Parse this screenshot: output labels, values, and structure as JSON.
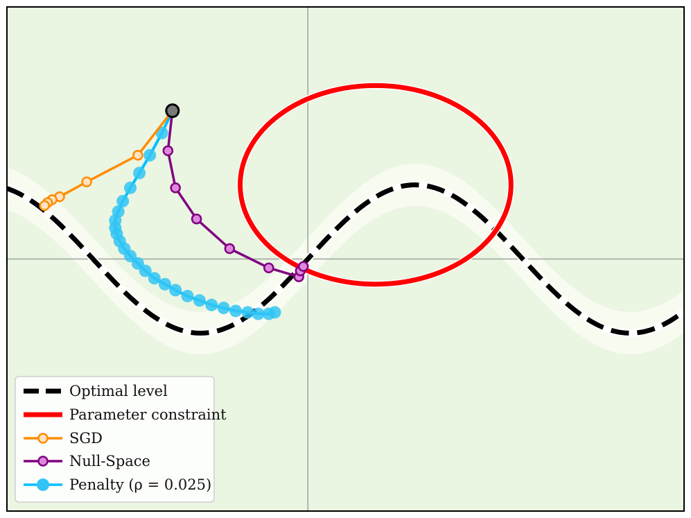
{
  "chart_data": {
    "type": "line",
    "title": "",
    "xlabel": "",
    "ylabel": "",
    "xlim": [
      -2.0,
      2.5
    ],
    "ylim": [
      -1.7,
      1.7
    ],
    "grid": false,
    "axis_lines": {
      "x": 0,
      "y": 0,
      "color": "#9aa39e"
    },
    "legend": {
      "position": "lower-left",
      "entries": [
        {
          "label": "Optimal level",
          "style": "dashed",
          "color": "#000000"
        },
        {
          "label": "Parameter constraint",
          "style": "solid",
          "color": "#ff0000"
        },
        {
          "label": "SGD",
          "style": "line-marker",
          "color": "#ff8c00"
        },
        {
          "label": "Null-Space",
          "style": "line-marker",
          "color": "#800080"
        },
        {
          "label": "Penalty (ρ = 0.025)",
          "style": "line-marker",
          "color": "#00bfff"
        }
      ]
    },
    "background": {
      "type": "contour",
      "function": "(y - 0.5*sin(2.2*x))^2",
      "colors": [
        "#f7fbf0",
        "#eaf5e2",
        "#d9efd6",
        "#c4e6cf",
        "#a8dcc9",
        "#8ccbd2",
        "#74b5d6",
        "#5f9fcf",
        "#4a88c2"
      ],
      "levels": [
        0.02,
        0.08,
        0.18,
        0.3,
        0.45,
        0.65,
        0.9,
        1.2
      ]
    },
    "optimal_level": {
      "name": "Optimal level",
      "color": "#000000",
      "curve": "y = 0.5*sin(2.2*x)",
      "x_range": [
        -2.0,
        2.5
      ]
    },
    "constraint": {
      "name": "Parameter constraint",
      "color": "#ff0000",
      "shape": "ellipse",
      "center": [
        0.45,
        0.5
      ],
      "radius_x": 0.9,
      "radius_y": 0.67
    },
    "start_point": {
      "x": -0.9,
      "y": 1.0
    },
    "series": [
      {
        "name": "SGD",
        "color": "#ff8c00",
        "marker_fill": "#ffe3c2",
        "points": [
          [
            -0.9,
            1.0
          ],
          [
            -1.13,
            0.7
          ],
          [
            -1.47,
            0.52
          ],
          [
            -1.65,
            0.42
          ],
          [
            -1.7,
            0.4
          ],
          [
            -1.73,
            0.38
          ],
          [
            -1.75,
            0.36
          ]
        ]
      },
      {
        "name": "Null-Space",
        "color": "#800080",
        "marker_fill": "#dd88dd",
        "points": [
          [
            -0.9,
            1.0
          ],
          [
            -0.93,
            0.73
          ],
          [
            -0.88,
            0.48
          ],
          [
            -0.74,
            0.27
          ],
          [
            -0.52,
            0.07
          ],
          [
            -0.26,
            -0.06
          ],
          [
            -0.06,
            -0.12
          ],
          [
            -0.05,
            -0.08
          ],
          [
            -0.03,
            -0.05
          ]
        ]
      },
      {
        "name": "Penalty (ρ = 0.025)",
        "color": "#00bfff",
        "marker_fill": "#33c4f4",
        "points": [
          [
            -0.9,
            1.0
          ],
          [
            -0.97,
            0.85
          ],
          [
            -1.05,
            0.7
          ],
          [
            -1.12,
            0.58
          ],
          [
            -1.18,
            0.48
          ],
          [
            -1.23,
            0.39
          ],
          [
            -1.26,
            0.32
          ],
          [
            -1.28,
            0.26
          ],
          [
            -1.28,
            0.21
          ],
          [
            -1.27,
            0.17
          ],
          [
            -1.25,
            0.12
          ],
          [
            -1.22,
            0.07
          ],
          [
            -1.18,
            0.02
          ],
          [
            -1.13,
            -0.03
          ],
          [
            -1.08,
            -0.08
          ],
          [
            -1.02,
            -0.13
          ],
          [
            -0.95,
            -0.17
          ],
          [
            -0.88,
            -0.21
          ],
          [
            -0.8,
            -0.25
          ],
          [
            -0.72,
            -0.28
          ],
          [
            -0.64,
            -0.31
          ],
          [
            -0.56,
            -0.33
          ],
          [
            -0.48,
            -0.35
          ],
          [
            -0.4,
            -0.36
          ],
          [
            -0.33,
            -0.37
          ],
          [
            -0.26,
            -0.37
          ],
          [
            -0.22,
            -0.36
          ]
        ]
      }
    ]
  }
}
